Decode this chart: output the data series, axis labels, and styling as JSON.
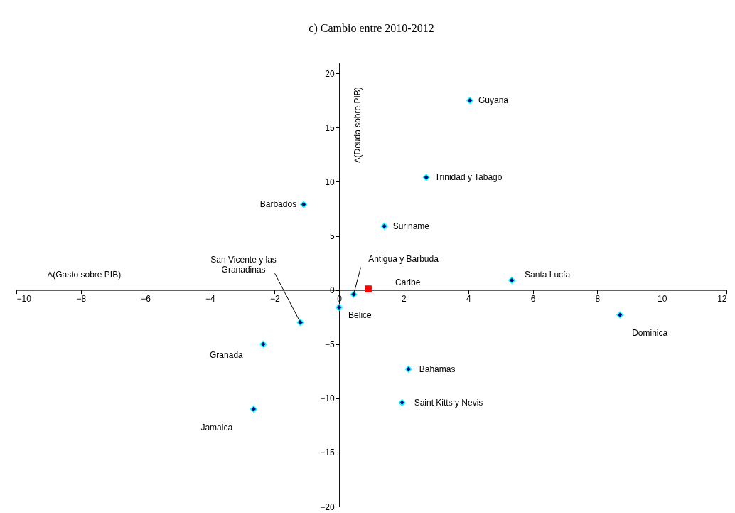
{
  "chart_data": {
    "type": "scatter",
    "title": "c) Cambio entre 2010-2012",
    "xlabel": "∆(Gasto sobre PIB)",
    "ylabel": "∆(Deuda sobre PIB)",
    "xlim": [
      -10,
      12
    ],
    "xticks": [
      -10,
      -8,
      -6,
      -4,
      -2,
      0,
      2,
      4,
      6,
      8,
      10,
      12
    ],
    "ylim": [
      -20,
      21
    ],
    "yticks": [
      -20,
      -15,
      -10,
      -5,
      0,
      5,
      10,
      15,
      20
    ],
    "grid": false,
    "series": [
      {
        "color": "#000080",
        "marker": "diamond",
        "x": [
          4.05,
          2.7,
          -1.1,
          1.4,
          0.45,
          5.35,
          0,
          -1.2,
          8.7,
          -2.35,
          2.15,
          1.95,
          -2.65
        ],
        "values": [
          17.5,
          10.4,
          7.9,
          5.9,
          -0.4,
          0.9,
          -1.6,
          -3.0,
          -2.3,
          -5.0,
          -7.3,
          -10.4,
          -11.0
        ]
      },
      {
        "name": "Caribe",
        "color": "#ff0000",
        "marker": "square",
        "x": [
          0.9
        ],
        "values": [
          0.1
        ]
      }
    ],
    "annotations": [
      {
        "text": "Guyana",
        "x": 4.05,
        "y": 17.5
      },
      {
        "text": "Trinidad y Tabago",
        "x": 2.7,
        "y": 10.4
      },
      {
        "text": "Barbados",
        "x": -1.1,
        "y": 7.9
      },
      {
        "text": "Suriname",
        "x": 1.4,
        "y": 5.9
      },
      {
        "text": "Antigua y Barbuda",
        "x": 0.45,
        "y": -0.4
      },
      {
        "text": "Santa Lucía",
        "x": 5.35,
        "y": 0.9
      },
      {
        "text": "Belice",
        "x": 0,
        "y": -1.6
      },
      {
        "text": "San Vicente y las\nGranadinas",
        "x": -1.2,
        "y": -3.0
      },
      {
        "text": "Dominica",
        "x": 8.7,
        "y": -2.3
      },
      {
        "text": "Granada",
        "x": -2.35,
        "y": -5.0
      },
      {
        "text": "Bahamas",
        "x": 2.15,
        "y": -7.3
      },
      {
        "text": "Saint Kitts y Nevis",
        "x": 1.95,
        "y": -10.4
      },
      {
        "text": "Jamaica",
        "x": -2.65,
        "y": -11.0
      }
    ]
  }
}
